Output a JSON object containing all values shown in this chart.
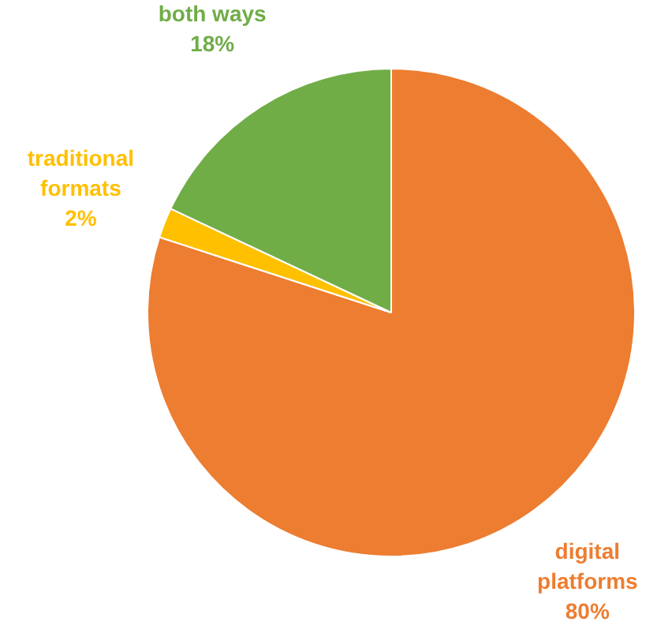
{
  "chart_data": {
    "type": "pie",
    "categories": [
      "digital platforms",
      "traditional formats",
      "both ways"
    ],
    "values": [
      80,
      2,
      18
    ],
    "colors": [
      "#ed7d31",
      "#ffc000",
      "#70ad47"
    ],
    "value_labels": [
      "80%",
      "2%",
      "18%"
    ],
    "legend": false
  }
}
